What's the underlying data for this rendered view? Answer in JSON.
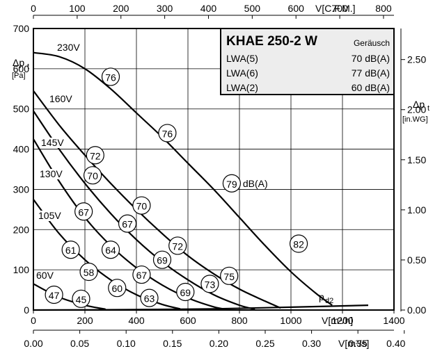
{
  "chart_data": {
    "type": "line",
    "x_primary": {
      "label": "V[m³/h]",
      "range": [
        0,
        1400
      ],
      "ticks": [
        0,
        200,
        400,
        600,
        800,
        1000,
        1200,
        1400
      ]
    },
    "x_top": {
      "label": "V[C.F.M.]",
      "range": [
        0,
        823.9
      ],
      "ticks": [
        0,
        100,
        200,
        300,
        400,
        500,
        600,
        700,
        800
      ]
    },
    "x_bottom2": {
      "label": "V[m³/s]",
      "range": [
        0,
        0.3889
      ],
      "ticks": [
        "0.00",
        "0.05",
        "0.10",
        "0.15",
        "0.20",
        "0.25",
        "0.30",
        "0.35",
        "0.40"
      ]
    },
    "y_left": {
      "label_main": "Δp",
      "label_sub": "t",
      "unit": "[Pa]",
      "range": [
        0,
        700
      ],
      "ticks": [
        0,
        100,
        200,
        300,
        400,
        500,
        600,
        700
      ]
    },
    "y_right": {
      "label_main": "Δp",
      "label_sub": "t",
      "unit": "[in.WG]",
      "range": [
        0,
        2.81
      ],
      "ticks": [
        "0.00",
        "0.50",
        "1.00",
        "1.50",
        "2.00",
        "2.50"
      ]
    },
    "grid": true,
    "series": [
      {
        "name": "230V",
        "points": [
          [
            0,
            640
          ],
          [
            100,
            630
          ],
          [
            200,
            600
          ],
          [
            300,
            550
          ],
          [
            400,
            490
          ],
          [
            500,
            430
          ],
          [
            600,
            365
          ],
          [
            700,
            300
          ],
          [
            800,
            230
          ],
          [
            900,
            160
          ],
          [
            1000,
            95
          ],
          [
            1100,
            40
          ],
          [
            1160,
            12
          ]
        ]
      },
      {
        "name": "160V",
        "points": [
          [
            0,
            545
          ],
          [
            100,
            460
          ],
          [
            200,
            385
          ],
          [
            300,
            315
          ],
          [
            400,
            250
          ],
          [
            500,
            190
          ],
          [
            600,
            135
          ],
          [
            700,
            90
          ],
          [
            800,
            52
          ],
          [
            900,
            22
          ],
          [
            960,
            5
          ]
        ]
      },
      {
        "name": "145V",
        "points": [
          [
            0,
            495
          ],
          [
            100,
            400
          ],
          [
            200,
            315
          ],
          [
            300,
            240
          ],
          [
            400,
            175
          ],
          [
            500,
            120
          ],
          [
            600,
            75
          ],
          [
            700,
            38
          ],
          [
            800,
            12
          ],
          [
            860,
            2
          ]
        ]
      },
      {
        "name": "130V",
        "points": [
          [
            0,
            425
          ],
          [
            100,
            320
          ],
          [
            200,
            230
          ],
          [
            300,
            160
          ],
          [
            400,
            105
          ],
          [
            500,
            62
          ],
          [
            600,
            30
          ],
          [
            700,
            8
          ],
          [
            750,
            2
          ]
        ]
      },
      {
        "name": "105V",
        "points": [
          [
            0,
            275
          ],
          [
            100,
            190
          ],
          [
            200,
            125
          ],
          [
            300,
            75
          ],
          [
            400,
            38
          ],
          [
            500,
            14
          ],
          [
            570,
            3
          ]
        ]
      },
      {
        "name": "60V",
        "points": [
          [
            0,
            65
          ],
          [
            100,
            32
          ],
          [
            200,
            12
          ],
          [
            280,
            2
          ]
        ]
      },
      {
        "name": "pd2",
        "points": [
          [
            0,
            0
          ],
          [
            400,
            1
          ],
          [
            700,
            3
          ],
          [
            1000,
            7
          ],
          [
            1300,
            12
          ]
        ]
      }
    ],
    "annotations": {
      "series_labels": [
        "230V",
        "160V",
        "145V",
        "130V",
        "105V",
        "60V"
      ],
      "pd_label_main": "p",
      "pd_label_sub": "d2",
      "dba_label": "dB(A)",
      "sound_markers": [
        {
          "value": "76",
          "x": 300,
          "y": 580
        },
        {
          "value": "76",
          "x": 520,
          "y": 440
        },
        {
          "value": "79",
          "x": 770,
          "y": 315
        },
        {
          "value": "82",
          "x": 1030,
          "y": 165
        },
        {
          "value": "72",
          "x": 240,
          "y": 385
        },
        {
          "value": "70",
          "x": 230,
          "y": 335
        },
        {
          "value": "70",
          "x": 420,
          "y": 260
        },
        {
          "value": "67",
          "x": 195,
          "y": 245
        },
        {
          "value": "67",
          "x": 365,
          "y": 215
        },
        {
          "value": "72",
          "x": 560,
          "y": 160
        },
        {
          "value": "61",
          "x": 145,
          "y": 150
        },
        {
          "value": "64",
          "x": 300,
          "y": 150
        },
        {
          "value": "69",
          "x": 500,
          "y": 125
        },
        {
          "value": "58",
          "x": 215,
          "y": 95
        },
        {
          "value": "67",
          "x": 420,
          "y": 88
        },
        {
          "value": "75",
          "x": 760,
          "y": 85
        },
        {
          "value": "60",
          "x": 325,
          "y": 55
        },
        {
          "value": "73",
          "x": 685,
          "y": 65
        },
        {
          "value": "47",
          "x": 80,
          "y": 38
        },
        {
          "value": "45",
          "x": 185,
          "y": 28
        },
        {
          "value": "63",
          "x": 450,
          "y": 30
        },
        {
          "value": "69",
          "x": 590,
          "y": 45
        }
      ]
    },
    "legend_box": {
      "title": "KHAE 250-2 W",
      "subtitle": "Geräusch",
      "rows": [
        {
          "label": "LWA(5)",
          "value": "70 dB(A)"
        },
        {
          "label": "LWA(6)",
          "value": "77 dB(A)"
        },
        {
          "label": "LWA(2)",
          "value": "60 dB(A)"
        }
      ],
      "placement": "top-right"
    }
  }
}
